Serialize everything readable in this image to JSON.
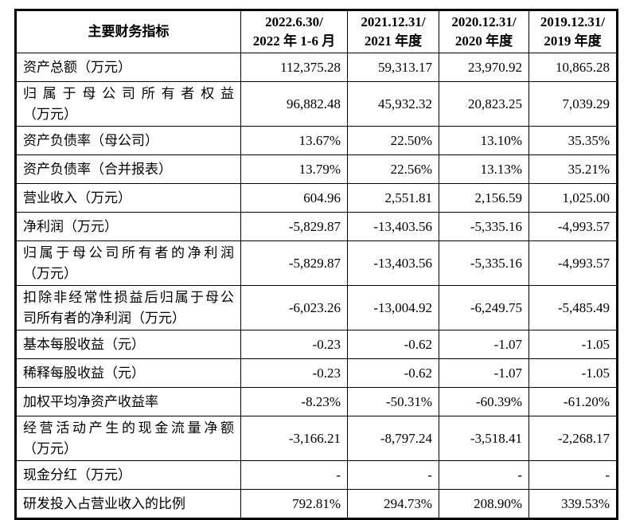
{
  "page": {
    "background": "#ffffff",
    "text_color": "#000000",
    "border_color": "#000000"
  },
  "table": {
    "header": {
      "indicator_label": "主要财务指标",
      "periods": [
        {
          "line1": "2022.6.30/",
          "line2": "2022 年 1-6 月"
        },
        {
          "line1": "2021.12.31/",
          "line2": "2021 年度"
        },
        {
          "line1": "2020.12.31/",
          "line2": "2020 年度"
        },
        {
          "line1": "2019.12.31/",
          "line2": "2019 年度"
        }
      ]
    },
    "rows": [
      {
        "lines": [
          "资产总额（万元）"
        ],
        "values": [
          "112,375.28",
          "59,313.17",
          "23,970.92",
          "10,865.28"
        ]
      },
      {
        "lines": [
          "归属于母公司所有者权益",
          "（万元）"
        ],
        "values": [
          "96,882.48",
          "45,932.32",
          "20,823.25",
          "7,039.29"
        ]
      },
      {
        "lines": [
          "资产负债率（母公司）"
        ],
        "values": [
          "13.67%",
          "22.50%",
          "13.10%",
          "35.35%"
        ]
      },
      {
        "lines": [
          "资产负债率（合并报表）"
        ],
        "values": [
          "13.79%",
          "22.56%",
          "13.13%",
          "35.21%"
        ]
      },
      {
        "lines": [
          "营业收入（万元）"
        ],
        "values": [
          "604.96",
          "2,551.81",
          "2,156.59",
          "1,025.00"
        ]
      },
      {
        "lines": [
          "净利润（万元）"
        ],
        "values": [
          "-5,829.87",
          "-13,403.56",
          "-5,335.16",
          "-4,993.57"
        ]
      },
      {
        "lines": [
          "归属于母公司所有者的净利润",
          "（万元）"
        ],
        "values": [
          "-5,829.87",
          "-13,403.56",
          "-5,335.16",
          "-4,993.57"
        ]
      },
      {
        "lines": [
          "扣除非经常性损益后归属于母公",
          "司所有者的净利润（万元）"
        ],
        "values": [
          "-6,023.26",
          "-13,004.92",
          "-6,249.75",
          "-5,485.49"
        ]
      },
      {
        "lines": [
          "基本每股收益（元）"
        ],
        "values": [
          "-0.23",
          "-0.62",
          "-1.07",
          "-1.05"
        ]
      },
      {
        "lines": [
          "稀释每股收益（元）"
        ],
        "values": [
          "-0.23",
          "-0.62",
          "-1.07",
          "-1.05"
        ]
      },
      {
        "lines": [
          "加权平均净资产收益率"
        ],
        "values": [
          "-8.23%",
          "-50.31%",
          "-60.39%",
          "-61.20%"
        ]
      },
      {
        "lines": [
          "经营活动产生的现金流量净额",
          "（万元）"
        ],
        "values": [
          "-3,166.21",
          "-8,797.24",
          "-3,518.41",
          "-2,268.17"
        ]
      },
      {
        "lines": [
          "现金分红（万元）"
        ],
        "values": [
          "-",
          "-",
          "-",
          "-"
        ]
      },
      {
        "lines": [
          "研发投入占营业收入的比例"
        ],
        "values": [
          "792.81%",
          "294.73%",
          "208.90%",
          "339.53%"
        ]
      }
    ]
  }
}
